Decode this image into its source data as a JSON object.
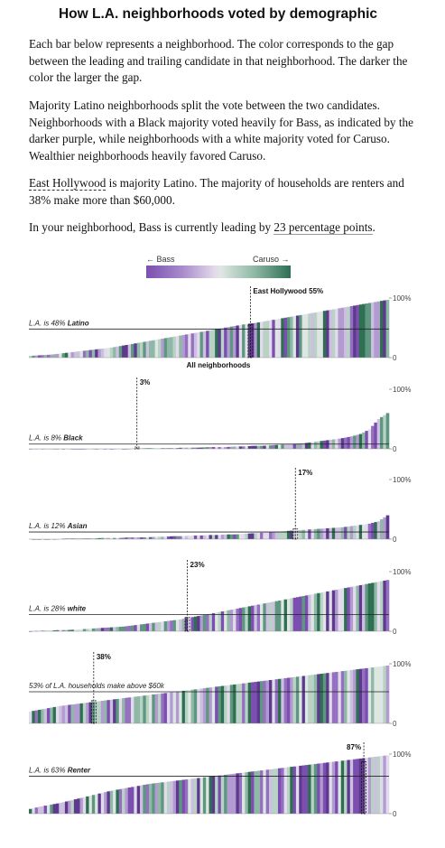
{
  "header": {
    "title": "How L.A. neighborhoods voted by demographic"
  },
  "intro": {
    "p1": "Each bar below represents a neighborhood. The color corresponds to the gap between the leading and trailing candidate in that neighborhood. The darker the color the larger the gap.",
    "p2": "Majority Latino neighborhoods split the vote between the two candidates. Neighborhoods with a Black majority voted heavily for Bass, as indicated by the darker purple, while neighborhoods with a white majority voted for Caruso. Wealthier neighborhoods heavily favored Caruso.",
    "p3_link": "East Hollywood",
    "p3_rest": " is majority Latino. The majority of households are renters and 38% make more than $60,000.",
    "p4_pre": "In your neighborhood, Bass is currently leading by ",
    "p4_link": "23 percentage points",
    "p4_post": "."
  },
  "legend": {
    "left": "← Bass",
    "right": "Caruso →",
    "colors": {
      "bass": "#7b4fb0",
      "neutral": "#e3e0e8",
      "caruso": "#2e6f52"
    }
  },
  "all_neighborhoods_label": "All neighborhoods",
  "chart_data": [
    {
      "type": "bar",
      "demographic": "Latino",
      "la_share_prefix": "L.A. is 48%",
      "la_share_bold": "Latino",
      "la_share": 48,
      "highlight_label": "East Hollywood 55%",
      "highlight": 55,
      "highlight_rank": 0.615,
      "label_side": "right",
      "ylim": [
        0,
        100
      ],
      "ytick_top": "100%",
      "ytick_bottom": "0",
      "sorted_values": [
        3,
        4,
        5,
        7,
        9,
        11,
        13,
        15,
        17,
        20,
        23,
        26,
        29,
        32,
        35,
        38,
        41,
        44,
        47,
        50,
        53,
        56,
        58,
        61,
        64,
        67,
        70,
        73,
        76,
        79,
        82,
        85,
        88,
        91,
        94,
        97
      ]
    },
    {
      "type": "bar",
      "demographic": "Black",
      "la_share_prefix": "L.A. is 8%",
      "la_share_bold": "Black",
      "la_share": 8,
      "highlight_label": "3%",
      "highlight": 3,
      "highlight_rank": 0.3,
      "label_side": "right",
      "ylim": [
        0,
        100
      ],
      "ytick_top": "100%",
      "ytick_bottom": "0",
      "sorted_values": [
        0,
        0,
        0,
        0,
        0,
        0,
        0,
        0,
        0,
        0,
        0,
        0,
        1,
        1,
        1,
        1,
        1,
        2,
        2,
        2,
        3,
        3,
        3,
        4,
        4,
        5,
        5,
        6,
        7,
        8,
        9,
        10,
        12,
        14,
        16,
        18,
        21,
        25,
        33,
        50,
        60
      ]
    },
    {
      "type": "bar",
      "demographic": "Asian",
      "la_share_prefix": "L.A. is 12%",
      "la_share_bold": "Asian",
      "la_share": 12,
      "highlight_label": "17%",
      "highlight": 17,
      "highlight_rank": 0.74,
      "label_side": "right",
      "ylim": [
        0,
        100
      ],
      "ytick_top": "100%",
      "ytick_bottom": "0",
      "sorted_values": [
        0,
        0,
        0,
        0,
        1,
        1,
        1,
        1,
        2,
        2,
        2,
        3,
        3,
        3,
        4,
        4,
        5,
        5,
        6,
        6,
        7,
        7,
        8,
        8,
        9,
        10,
        11,
        12,
        13,
        14,
        15,
        16,
        17,
        18,
        19,
        20,
        22,
        24,
        26,
        30,
        40
      ]
    },
    {
      "type": "bar",
      "demographic": "white",
      "la_share_prefix": "L.A. is 28%",
      "la_share_bold": "white",
      "la_share": 28,
      "highlight_label": "23%",
      "highlight": 23,
      "highlight_rank": 0.44,
      "label_side": "right",
      "ylim": [
        0,
        100
      ],
      "ytick_top": "100%",
      "ytick_bottom": "0",
      "sorted_values": [
        0,
        1,
        1,
        2,
        2,
        3,
        4,
        5,
        6,
        7,
        8,
        10,
        12,
        14,
        16,
        18,
        20,
        23,
        26,
        29,
        32,
        35,
        38,
        41,
        44,
        47,
        50,
        53,
        56,
        59,
        62,
        65,
        68,
        71,
        74,
        77,
        80,
        83,
        86
      ]
    },
    {
      "type": "bar",
      "demographic": "Income above $60k",
      "la_share_prefix": "53%",
      "la_share_bold": "",
      "la_share_suffix": "of L.A. households make above $60k",
      "la_share": 53,
      "highlight_label": "38%",
      "highlight": 38,
      "highlight_rank": 0.18,
      "label_side": "right",
      "ylim": [
        0,
        100
      ],
      "ytick_top": "100%",
      "ytick_bottom": "0",
      "sorted_values": [
        20,
        23,
        26,
        29,
        31,
        33,
        35,
        37,
        39,
        41,
        43,
        45,
        47,
        49,
        51,
        53,
        55,
        57,
        59,
        61,
        63,
        65,
        67,
        69,
        71,
        73,
        75,
        77,
        79,
        81,
        83,
        85,
        87,
        89,
        91,
        93,
        95,
        97
      ]
    },
    {
      "type": "bar",
      "demographic": "Renter",
      "la_share_prefix": "L.A. is 63%",
      "la_share_bold": "Renter",
      "la_share": 63,
      "highlight_label": "87%",
      "highlight": 87,
      "highlight_rank": 0.93,
      "label_side": "left",
      "ylim": [
        0,
        100
      ],
      "ytick_top": "100%",
      "ytick_bottom": "0",
      "sorted_values": [
        8,
        12,
        15,
        18,
        22,
        26,
        30,
        34,
        38,
        41,
        44,
        47,
        50,
        52,
        54,
        56,
        58,
        60,
        62,
        64,
        66,
        68,
        70,
        72,
        74,
        76,
        78,
        80,
        82,
        84,
        86,
        88,
        90,
        92,
        94,
        96,
        98
      ]
    }
  ]
}
